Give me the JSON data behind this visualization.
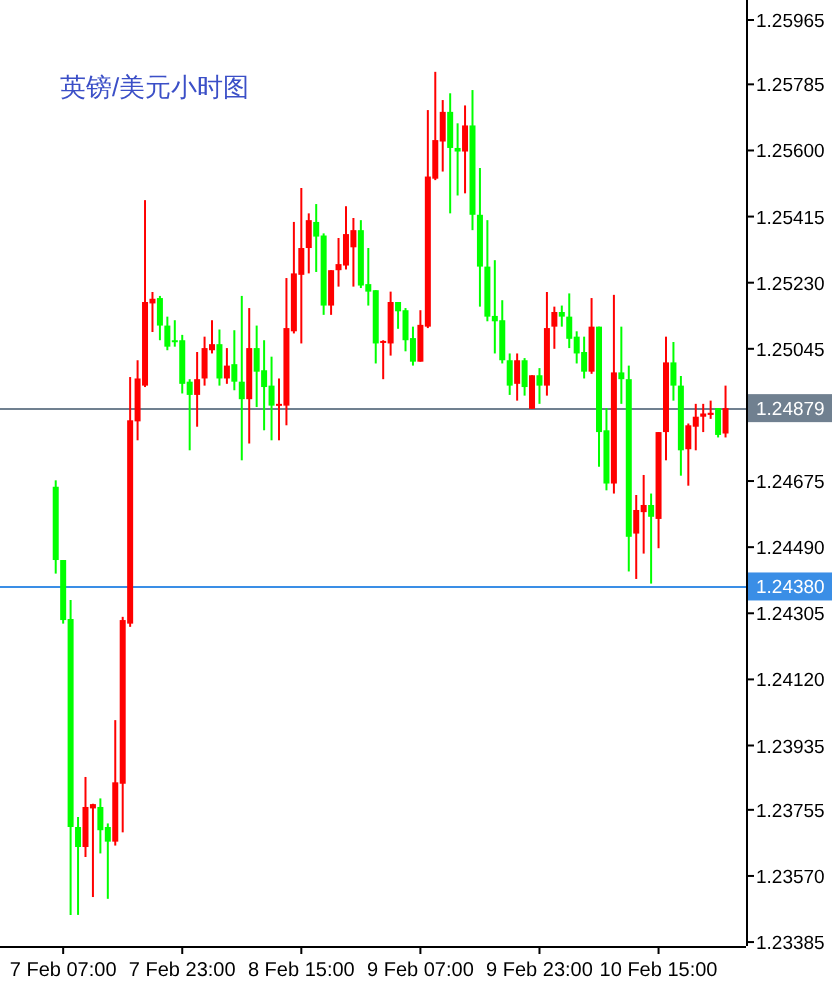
{
  "chart_data": {
    "type": "candlestick",
    "title": "英镑/美元小时图",
    "categories": [
      null,
      "7 Feb 07:00",
      null,
      null,
      null,
      null,
      null,
      null,
      null,
      null,
      null,
      null,
      null,
      null,
      null,
      null,
      null,
      "7 Feb 23:00",
      null,
      null,
      null,
      null,
      null,
      null,
      null,
      null,
      null,
      null,
      null,
      null,
      null,
      null,
      null,
      "8 Feb 15:00",
      null,
      null,
      null,
      null,
      null,
      null,
      null,
      null,
      null,
      null,
      null,
      null,
      null,
      null,
      null,
      "9 Feb 07:00",
      null,
      null,
      null,
      null,
      null,
      null,
      null,
      null,
      null,
      null,
      null,
      null,
      null,
      null,
      null,
      "9 Feb 23:00",
      null,
      null,
      null,
      null,
      null,
      null,
      null,
      null,
      null,
      null,
      null,
      null,
      null,
      null,
      null,
      "10 Feb 15:00",
      null,
      null,
      null,
      null,
      null,
      null,
      null,
      null,
      null
    ],
    "ohlc": [
      [
        1.24659,
        1.24677,
        1.24416,
        1.24454
      ],
      [
        1.24454,
        1.24454,
        1.24276,
        1.24286
      ],
      [
        1.24289,
        1.24342,
        1.23461,
        1.23707
      ],
      [
        1.23707,
        1.23735,
        1.23461,
        1.23651
      ],
      [
        1.23651,
        1.23847,
        1.23623,
        1.23763
      ],
      [
        1.23759,
        1.23772,
        1.23511,
        1.23771
      ],
      [
        1.23763,
        1.23787,
        1.23633,
        1.23698
      ],
      [
        1.23707,
        1.23717,
        1.23506,
        1.23666
      ],
      [
        1.23666,
        1.24006,
        1.23655,
        1.23832
      ],
      [
        1.23828,
        1.24295,
        1.23692,
        1.24286
      ],
      [
        1.24276,
        1.24966,
        1.24267,
        1.24845
      ],
      [
        1.24842,
        1.25013,
        1.24789,
        1.24962
      ],
      [
        1.24942,
        1.25461,
        1.24938,
        1.25176
      ],
      [
        1.25172,
        1.25204,
        1.25092,
        1.25185
      ],
      [
        1.25187,
        1.25193,
        1.25069,
        1.2511
      ],
      [
        1.2511,
        1.25135,
        1.25041,
        1.25051
      ],
      [
        1.25069,
        1.25125,
        1.25051,
        1.25064
      ],
      [
        1.25069,
        1.25084,
        1.2492,
        1.24947
      ],
      [
        1.24953,
        1.2496,
        1.24761,
        1.24916
      ],
      [
        1.24916,
        1.25036,
        1.24827,
        1.2496
      ],
      [
        1.24962,
        1.25079,
        1.24942,
        1.25047
      ],
      [
        1.25041,
        1.25125,
        1.25032,
        1.25058
      ],
      [
        1.25058,
        1.25099,
        1.24942,
        1.24962
      ],
      [
        1.24962,
        1.25047,
        1.24947,
        1.24998
      ],
      [
        1.25002,
        1.25097,
        1.24929,
        1.24953
      ],
      [
        1.24953,
        1.25193,
        1.24733,
        1.24904
      ],
      [
        1.24904,
        1.25159,
        1.2478,
        1.25047
      ],
      [
        1.25047,
        1.2511,
        1.24882,
        1.24981
      ],
      [
        1.24985,
        1.25069,
        1.24817,
        1.24938
      ],
      [
        1.24942,
        1.25023,
        1.24789,
        1.24886
      ],
      [
        1.24886,
        1.24962,
        1.24789,
        1.24891
      ],
      [
        1.24886,
        1.25243,
        1.24831,
        1.25103
      ],
      [
        1.25094,
        1.254,
        1.25088,
        1.25256
      ],
      [
        1.25252,
        1.25495,
        1.2506,
        1.25327
      ],
      [
        1.25327,
        1.25424,
        1.25256,
        1.25405
      ],
      [
        1.254,
        1.2545,
        1.2526,
        1.25359
      ],
      [
        1.25362,
        1.25368,
        1.2514,
        1.25166
      ],
      [
        1.25166,
        1.25265,
        1.2514,
        1.25265
      ],
      [
        1.25265,
        1.25355,
        1.25219,
        1.25282
      ],
      [
        1.25278,
        1.25444,
        1.25267,
        1.25366
      ],
      [
        1.25329,
        1.25411,
        1.25219,
        1.25377
      ],
      [
        1.25377,
        1.25405,
        1.25215,
        1.25222
      ],
      [
        1.25226,
        1.25327,
        1.25166,
        1.25205
      ],
      [
        1.25209,
        1.25209,
        1.25004,
        1.2506
      ],
      [
        1.25062,
        1.25069,
        1.2496,
        1.25067
      ],
      [
        1.2506,
        1.25205,
        1.25026,
        1.25176
      ],
      [
        1.25176,
        1.25176,
        1.25101,
        1.2515
      ],
      [
        1.25153,
        1.25159,
        1.25038,
        1.25069
      ],
      [
        1.25075,
        1.25107,
        1.24998,
        1.25009
      ],
      [
        1.25009,
        1.25153,
        1.25009,
        1.25112
      ],
      [
        1.25107,
        1.25713,
        1.25103,
        1.25527
      ],
      [
        1.25521,
        1.2582,
        1.25517,
        1.25629
      ],
      [
        1.25625,
        1.25741,
        1.25541,
        1.25708
      ],
      [
        1.25708,
        1.2576,
        1.25424,
        1.25607
      ],
      [
        1.25607,
        1.25676,
        1.25474,
        1.25597
      ],
      [
        1.25597,
        1.25726,
        1.2548,
        1.2567
      ],
      [
        1.2567,
        1.25769,
        1.25377,
        1.2542
      ],
      [
        1.2542,
        1.25551,
        1.25163,
        1.25275
      ],
      [
        1.25275,
        1.25405,
        1.25122,
        1.25135
      ],
      [
        1.25137,
        1.25293,
        1.25032,
        1.25122
      ],
      [
        1.25125,
        1.25181,
        1.25004,
        1.25013
      ],
      [
        1.25013,
        1.25032,
        1.24916,
        1.24942
      ],
      [
        1.24947,
        1.25032,
        1.249,
        1.25013
      ],
      [
        1.25013,
        1.25019,
        1.24914,
        1.24938
      ],
      [
        1.24877,
        1.24971,
        1.24877,
        1.24971
      ],
      [
        1.24971,
        1.24991,
        1.24891,
        1.24942
      ],
      [
        1.24942,
        1.25204,
        1.24914,
        1.25103
      ],
      [
        1.25107,
        1.25163,
        1.25045,
        1.25148
      ],
      [
        1.25148,
        1.25166,
        1.25107,
        1.25135
      ],
      [
        1.25135,
        1.252,
        1.25047,
        1.25073
      ],
      [
        1.25079,
        1.25094,
        1.25004,
        1.25032
      ],
      [
        1.25036,
        1.25079,
        1.24962,
        1.24981
      ],
      [
        1.24981,
        1.25187,
        1.24975,
        1.25107
      ],
      [
        1.25107,
        1.25107,
        1.24715,
        1.24812
      ],
      [
        1.24817,
        1.24879,
        1.24649,
        1.24668
      ],
      [
        1.24668,
        1.25196,
        1.2464,
        1.24979
      ],
      [
        1.24979,
        1.25107,
        1.24891,
        1.2496
      ],
      [
        1.2496,
        1.24998,
        1.24422,
        1.24519
      ],
      [
        1.24528,
        1.24636,
        1.24401,
        1.24594
      ],
      [
        1.24588,
        1.24692,
        1.24472,
        1.24608
      ],
      [
        1.24608,
        1.2464,
        1.24388,
        1.24575
      ],
      [
        1.24569,
        1.24812,
        1.24487,
        1.24812
      ],
      [
        1.24812,
        1.25079,
        1.24733,
        1.25007
      ],
      [
        1.25007,
        1.25064,
        1.249,
        1.24942
      ],
      [
        1.24942,
        1.24969,
        1.2469,
        1.24761
      ],
      [
        1.24764,
        1.24836,
        1.24662,
        1.24831
      ],
      [
        1.24827,
        1.24891,
        1.24761,
        1.24855
      ],
      [
        1.24855,
        1.24891,
        1.24812,
        1.24864
      ],
      [
        1.2486,
        1.249,
        1.24849,
        1.24866
      ],
      [
        1.24879,
        1.24879,
        1.24797,
        1.24804
      ],
      [
        1.24808,
        1.24942,
        1.24797,
        1.24879
      ]
    ],
    "colors": [
      "#00ff00",
      "#00ff00",
      "#00ff00",
      "#00ff00",
      "#ff0000",
      "#ff0000",
      "#00ff00",
      "#00ff00",
      "#ff0000",
      "#ff0000",
      "#ff0000",
      "#ff0000",
      "#ff0000",
      "#ff0000",
      "#00ff00",
      "#00ff00",
      "#00ff00",
      "#00ff00",
      "#00ff00",
      "#ff0000",
      "#ff0000",
      "#ff0000",
      "#00ff00",
      "#ff0000",
      "#00ff00",
      "#00ff00",
      "#ff0000",
      "#00ff00",
      "#00ff00",
      "#00ff00",
      "#ff0000",
      "#ff0000",
      "#ff0000",
      "#ff0000",
      "#ff0000",
      "#00ff00",
      "#00ff00",
      "#ff0000",
      "#ff0000",
      "#ff0000",
      "#ff0000",
      "#00ff00",
      "#00ff00",
      "#00ff00",
      "#ff0000",
      "#ff0000",
      "#00ff00",
      "#00ff00",
      "#00ff00",
      "#ff0000",
      "#ff0000",
      "#ff0000",
      "#ff0000",
      "#00ff00",
      "#00ff00",
      "#ff0000",
      "#00ff00",
      "#00ff00",
      "#00ff00",
      "#00ff00",
      "#00ff00",
      "#00ff00",
      "#ff0000",
      "#00ff00",
      "#ff0000",
      "#00ff00",
      "#ff0000",
      "#ff0000",
      "#00ff00",
      "#00ff00",
      "#00ff00",
      "#00ff00",
      "#ff0000",
      "#00ff00",
      "#00ff00",
      "#ff0000",
      "#00ff00",
      "#00ff00",
      "#ff0000",
      "#ff0000",
      "#00ff00",
      "#ff0000",
      "#ff0000",
      "#00ff00",
      "#00ff00",
      "#ff0000",
      "#ff0000",
      "#ff0000",
      "#ff0000",
      "#00ff00",
      "#ff0000"
    ],
    "ylim": [
      1.23374,
      1.26021
    ],
    "yticks": [
      {
        "value": 1.25965,
        "label": "1.25965"
      },
      {
        "value": 1.25785,
        "label": "1.25785"
      },
      {
        "value": 1.256,
        "label": "1.25600"
      },
      {
        "value": 1.25415,
        "label": "1.25415"
      },
      {
        "value": 1.2523,
        "label": "1.25230"
      },
      {
        "value": 1.25045,
        "label": "1.25045"
      },
      {
        "value": 1.24675,
        "label": "1.24675"
      },
      {
        "value": 1.2449,
        "label": "1.24490"
      },
      {
        "value": 1.24305,
        "label": "1.24305"
      },
      {
        "value": 1.2412,
        "label": "1.24120"
      },
      {
        "value": 1.23935,
        "label": "1.23935"
      },
      {
        "value": 1.23755,
        "label": "1.23755"
      },
      {
        "value": 1.2357,
        "label": "1.23570"
      },
      {
        "value": 1.23385,
        "label": "1.23385"
      }
    ],
    "ref_lines": [
      {
        "axis": "y",
        "value": 1.24879,
        "label": "1.24879",
        "color": "#708090"
      },
      {
        "axis": "y",
        "value": 1.2438,
        "label": "1.24380",
        "color": "#3a8ee6"
      }
    ]
  }
}
